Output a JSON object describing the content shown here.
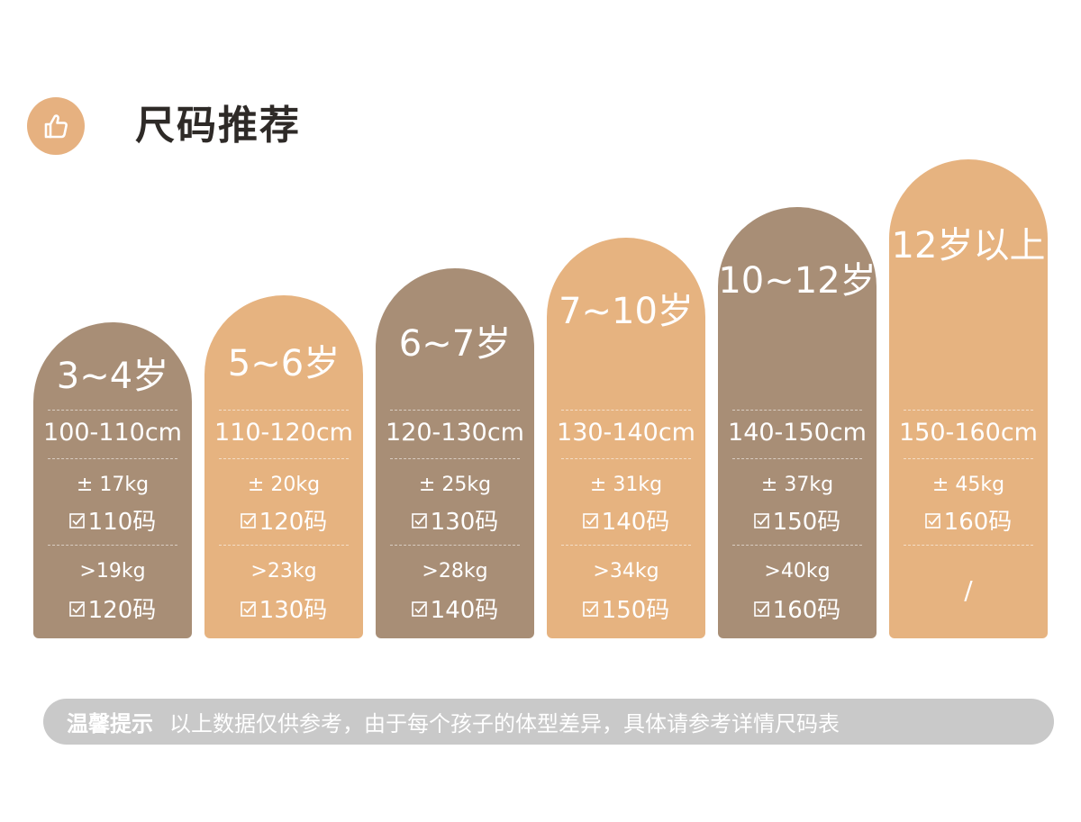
{
  "header": {
    "title": "尺码推荐",
    "icon": "thumbs-up-icon",
    "icon_bg": "#e6b180"
  },
  "colors": {
    "brown": "#a88e76",
    "tan": "#e6b380",
    "tip_bg": "#c9c9c9"
  },
  "cards": [
    {
      "age": "3~4岁",
      "height": "100-110cm",
      "weight1": "± 17kg",
      "size1": "110码",
      "weight2": ">19kg",
      "size2": "120码"
    },
    {
      "age": "5~6岁",
      "height": "110-120cm",
      "weight1": "± 20kg",
      "size1": "120码",
      "weight2": ">23kg",
      "size2": "130码"
    },
    {
      "age": "6~7岁",
      "height": "120-130cm",
      "weight1": "± 25kg",
      "size1": "130码",
      "weight2": ">28kg",
      "size2": "140码"
    },
    {
      "age": "7~10岁",
      "height": "130-140cm",
      "weight1": "± 31kg",
      "size1": "140码",
      "weight2": ">34kg",
      "size2": "150码"
    },
    {
      "age": "10~12岁",
      "height": "140-150cm",
      "weight1": "± 37kg",
      "size1": "150码",
      "weight2": ">40kg",
      "size2": "160码"
    },
    {
      "age": "12岁以上",
      "height": "150-160cm",
      "weight1": "± 45kg",
      "size1": "160码",
      "empty": "/"
    }
  ],
  "tip": {
    "label": "温馨提示",
    "text": "以上数据仅供参考，由于每个孩子的体型差异，具体请参考详情尺码表"
  }
}
